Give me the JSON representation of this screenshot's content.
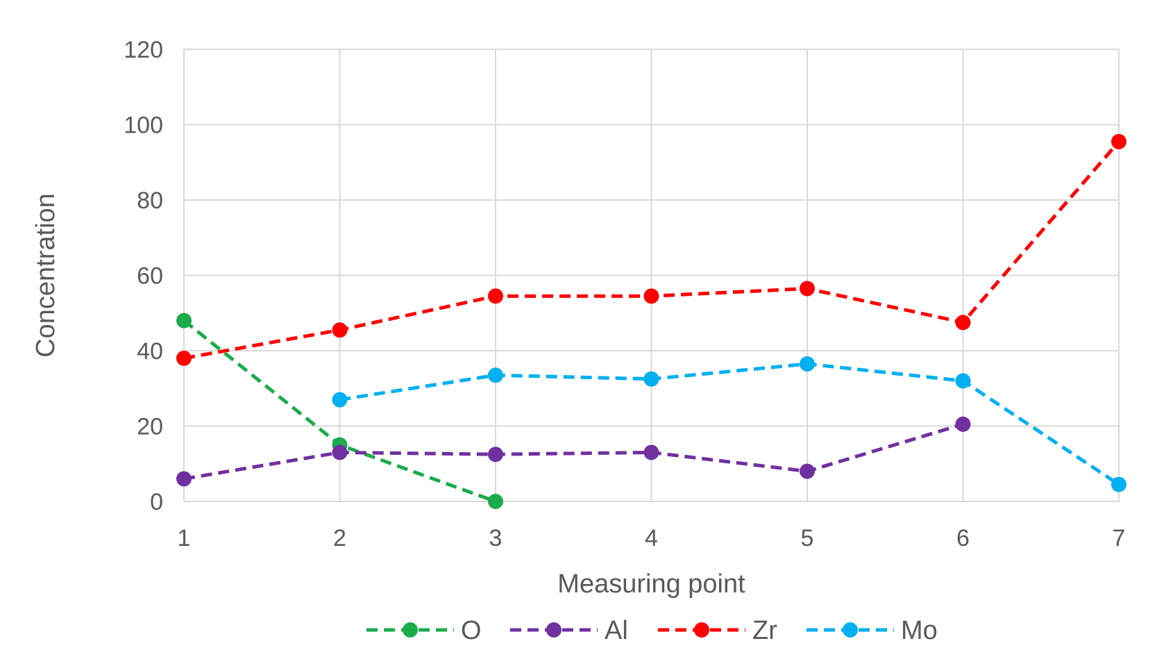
{
  "chart_data": {
    "type": "line",
    "xlabel": "Measuring point",
    "ylabel": "Concentration",
    "categories": [
      "1",
      "2",
      "3",
      "4",
      "5",
      "6",
      "7"
    ],
    "ylim": [
      0,
      120
    ],
    "yticks": [
      0,
      20,
      40,
      60,
      80,
      100,
      120
    ],
    "grid": true,
    "legend_position": "bottom",
    "line_style": "dashed",
    "series": [
      {
        "name": "O",
        "color": "#1aab4b",
        "values": [
          48,
          15,
          0,
          null,
          null,
          null,
          null
        ]
      },
      {
        "name": "Al",
        "color": "#7030a0",
        "values": [
          6,
          13,
          12.5,
          13,
          8,
          20.5,
          null
        ]
      },
      {
        "name": "Zr",
        "color": "#ff0000",
        "values": [
          38,
          45.5,
          54.5,
          54.5,
          56.5,
          47.5,
          95.5
        ]
      },
      {
        "name": "Mo",
        "color": "#00b0f0",
        "values": [
          null,
          27,
          33.5,
          32.5,
          36.5,
          32,
          4.5
        ]
      }
    ]
  }
}
